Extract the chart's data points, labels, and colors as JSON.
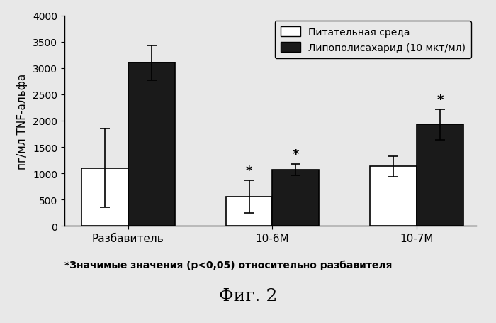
{
  "groups": [
    "Разбавитель",
    "10-6М",
    "10-7М"
  ],
  "white_values": [
    1100,
    560,
    1130
  ],
  "black_values": [
    3100,
    1070,
    1930
  ],
  "white_errors": [
    750,
    310,
    190
  ],
  "black_errors": [
    330,
    110,
    290
  ],
  "white_star": [
    false,
    true,
    false
  ],
  "black_star": [
    false,
    true,
    true
  ],
  "ylabel": "пг/мл TNF-альфа",
  "ylim": [
    0,
    4000
  ],
  "yticks": [
    0,
    500,
    1000,
    1500,
    2000,
    2500,
    3000,
    3500,
    4000
  ],
  "legend_labels": [
    "Питательная среда",
    "Липополисахарид (10 мкт/мл)"
  ],
  "footnote": "*Значимые значения (p<0,05) относительно разбавителя",
  "figure_label": "Фиг. 2",
  "bar_width": 0.55,
  "group_positions": [
    1.0,
    2.7,
    4.4
  ],
  "white_color": "#FFFFFF",
  "black_color": "#1a1a1a",
  "edge_color": "#000000",
  "background_color": "#e8e8e8",
  "plot_bg_color": "#e8e8e8",
  "label_fontsize": 11,
  "tick_fontsize": 10,
  "legend_fontsize": 10,
  "footnote_fontsize": 10,
  "figure_label_fontsize": 18,
  "star_fontsize": 13
}
